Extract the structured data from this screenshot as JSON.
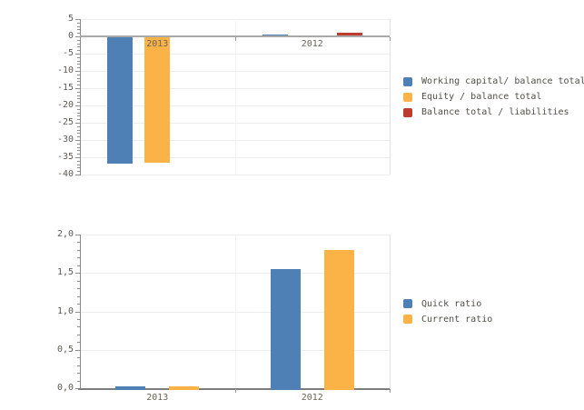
{
  "page": {
    "background": "#ffffff"
  },
  "chart_data": [
    {
      "type": "bar",
      "title": "",
      "categories": [
        "2013",
        "2012"
      ],
      "series": [
        {
          "name": "Working capital/ balance total",
          "color": "#4e80b6",
          "values": [
            -36.8,
            0.5
          ]
        },
        {
          "name": "Equity / balance total",
          "color": "#fbb347",
          "values": [
            -36.6,
            0.35
          ]
        },
        {
          "name": "Balance total / liabilities",
          "color": "#be3c2e",
          "values": [
            0,
            1.0
          ]
        }
      ],
      "ylim": [
        -40,
        5
      ],
      "ytick_step": 5,
      "yminor_step": 1,
      "yticklabels": [
        "5",
        "0",
        "-5",
        "-10",
        "-15",
        "-20",
        "-25",
        "-30",
        "-35",
        "-40"
      ],
      "grid": true,
      "legend_position": "right"
    },
    {
      "type": "bar",
      "title": "",
      "categories": [
        "2013",
        "2012"
      ],
      "series": [
        {
          "name": "Quick ratio",
          "color": "#4e80b6",
          "values": [
            0.02,
            1.55
          ]
        },
        {
          "name": "Current ratio",
          "color": "#fbb347",
          "values": [
            0.02,
            1.8
          ]
        }
      ],
      "ylim": [
        0,
        2
      ],
      "ytick_step": 0.5,
      "yminor_step": 0.1,
      "yticklabels": [
        "2,0",
        "1,5",
        "1,0",
        "0,5",
        "0,0"
      ],
      "grid": true,
      "legend_position": "right"
    }
  ]
}
